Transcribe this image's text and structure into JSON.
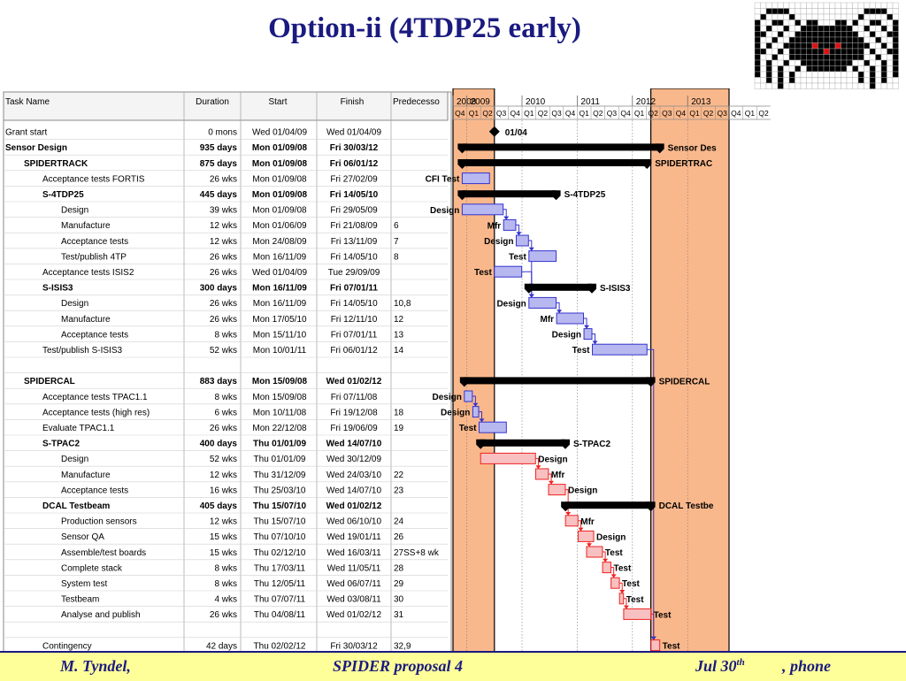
{
  "title": "Option-ii (4TDP25 early)",
  "footer": {
    "author": "M. Tyndel,",
    "proposal": "SPIDER proposal 4",
    "date": "Jul 30",
    "date_sup": "th",
    "phone": ", phone"
  },
  "table": {
    "headers": [
      "Task Name",
      "Duration",
      "Start",
      "Finish",
      "Predecesso"
    ],
    "rows": [
      {
        "name": "Grant start",
        "indent": 0,
        "bold": false,
        "duration": "0 mons",
        "start": "Wed 01/04/09",
        "finish": "Wed 01/04/09",
        "pred": ""
      },
      {
        "name": "Sensor Design",
        "indent": 0,
        "bold": true,
        "duration": "935 days",
        "start": "Mon 01/09/08",
        "finish": "Fri 30/03/12",
        "pred": ""
      },
      {
        "name": "SPIDERTRACK",
        "indent": 1,
        "bold": true,
        "duration": "875 days",
        "start": "Mon 01/09/08",
        "finish": "Fri 06/01/12",
        "pred": ""
      },
      {
        "name": "Acceptance tests FORTIS",
        "indent": 2,
        "bold": false,
        "duration": "26 wks",
        "start": "Mon 01/09/08",
        "finish": "Fri 27/02/09",
        "pred": ""
      },
      {
        "name": "S-4TDP25",
        "indent": 2,
        "bold": true,
        "duration": "445 days",
        "start": "Mon 01/09/08",
        "finish": "Fri 14/05/10",
        "pred": ""
      },
      {
        "name": "Design",
        "indent": 3,
        "bold": false,
        "duration": "39 wks",
        "start": "Mon 01/09/08",
        "finish": "Fri 29/05/09",
        "pred": ""
      },
      {
        "name": "Manufacture",
        "indent": 3,
        "bold": false,
        "duration": "12 wks",
        "start": "Mon 01/06/09",
        "finish": "Fri 21/08/09",
        "pred": "6"
      },
      {
        "name": "Acceptance tests",
        "indent": 3,
        "bold": false,
        "duration": "12 wks",
        "start": "Mon 24/08/09",
        "finish": "Fri 13/11/09",
        "pred": "7"
      },
      {
        "name": "Test/publish 4TP",
        "indent": 3,
        "bold": false,
        "duration": "26 wks",
        "start": "Mon 16/11/09",
        "finish": "Fri 14/05/10",
        "pred": "8"
      },
      {
        "name": "Acceptance tests ISIS2",
        "indent": 2,
        "bold": false,
        "duration": "26 wks",
        "start": "Wed 01/04/09",
        "finish": "Tue 29/09/09",
        "pred": ""
      },
      {
        "name": "S-ISIS3",
        "indent": 2,
        "bold": true,
        "duration": "300 days",
        "start": "Mon 16/11/09",
        "finish": "Fri 07/01/11",
        "pred": ""
      },
      {
        "name": "Design",
        "indent": 3,
        "bold": false,
        "duration": "26 wks",
        "start": "Mon 16/11/09",
        "finish": "Fri 14/05/10",
        "pred": "10,8"
      },
      {
        "name": "Manufacture",
        "indent": 3,
        "bold": false,
        "duration": "26 wks",
        "start": "Mon 17/05/10",
        "finish": "Fri 12/11/10",
        "pred": "12"
      },
      {
        "name": "Acceptance tests",
        "indent": 3,
        "bold": false,
        "duration": "8 wks",
        "start": "Mon 15/11/10",
        "finish": "Fri 07/01/11",
        "pred": "13"
      },
      {
        "name": "Test/publish S-ISIS3",
        "indent": 2,
        "bold": false,
        "duration": "52 wks",
        "start": "Mon 10/01/11",
        "finish": "Fri 06/01/12",
        "pred": "14"
      },
      {
        "name": "",
        "indent": 0,
        "bold": false,
        "duration": "",
        "start": "",
        "finish": "",
        "pred": ""
      },
      {
        "name": "SPIDERCAL",
        "indent": 1,
        "bold": true,
        "duration": "883 days",
        "start": "Mon 15/09/08",
        "finish": "Wed 01/02/12",
        "pred": ""
      },
      {
        "name": "Acceptance tests TPAC1.1",
        "indent": 2,
        "bold": false,
        "duration": "8 wks",
        "start": "Mon 15/09/08",
        "finish": "Fri 07/11/08",
        "pred": ""
      },
      {
        "name": "Acceptance tests (high res)",
        "indent": 2,
        "bold": false,
        "duration": "6 wks",
        "start": "Mon 10/11/08",
        "finish": "Fri 19/12/08",
        "pred": "18"
      },
      {
        "name": "Evaluate TPAC1.1",
        "indent": 2,
        "bold": false,
        "duration": "26 wks",
        "start": "Mon 22/12/08",
        "finish": "Fri 19/06/09",
        "pred": "19"
      },
      {
        "name": "S-TPAC2",
        "indent": 2,
        "bold": true,
        "duration": "400 days",
        "start": "Thu 01/01/09",
        "finish": "Wed 14/07/10",
        "pred": ""
      },
      {
        "name": "Design",
        "indent": 3,
        "bold": false,
        "duration": "52 wks",
        "start": "Thu 01/01/09",
        "finish": "Wed 30/12/09",
        "pred": ""
      },
      {
        "name": "Manufacture",
        "indent": 3,
        "bold": false,
        "duration": "12 wks",
        "start": "Thu 31/12/09",
        "finish": "Wed 24/03/10",
        "pred": "22"
      },
      {
        "name": "Acceptance tests",
        "indent": 3,
        "bold": false,
        "duration": "16 wks",
        "start": "Thu 25/03/10",
        "finish": "Wed 14/07/10",
        "pred": "23"
      },
      {
        "name": "DCAL Testbeam",
        "indent": 2,
        "bold": true,
        "duration": "405 days",
        "start": "Thu 15/07/10",
        "finish": "Wed 01/02/12",
        "pred": ""
      },
      {
        "name": "Production sensors",
        "indent": 3,
        "bold": false,
        "duration": "12 wks",
        "start": "Thu 15/07/10",
        "finish": "Wed 06/10/10",
        "pred": "24"
      },
      {
        "name": "Sensor QA",
        "indent": 3,
        "bold": false,
        "duration": "15 wks",
        "start": "Thu 07/10/10",
        "finish": "Wed 19/01/11",
        "pred": "26"
      },
      {
        "name": "Assemble/test  boards",
        "indent": 3,
        "bold": false,
        "duration": "15 wks",
        "start": "Thu 02/12/10",
        "finish": "Wed 16/03/11",
        "pred": "27SS+8 wk"
      },
      {
        "name": "Complete stack",
        "indent": 3,
        "bold": false,
        "duration": "8 wks",
        "start": "Thu 17/03/11",
        "finish": "Wed 11/05/11",
        "pred": "28"
      },
      {
        "name": "System test",
        "indent": 3,
        "bold": false,
        "duration": "8 wks",
        "start": "Thu 12/05/11",
        "finish": "Wed 06/07/11",
        "pred": "29"
      },
      {
        "name": "Testbeam",
        "indent": 3,
        "bold": false,
        "duration": "4 wks",
        "start": "Thu 07/07/11",
        "finish": "Wed 03/08/11",
        "pred": "30"
      },
      {
        "name": "Analyse and publish",
        "indent": 3,
        "bold": false,
        "duration": "26 wks",
        "start": "Thu 04/08/11",
        "finish": "Wed 01/02/12",
        "pred": "31"
      },
      {
        "name": "",
        "indent": 0,
        "bold": false,
        "duration": "",
        "start": "",
        "finish": "",
        "pred": ""
      },
      {
        "name": "Contingency",
        "indent": 2,
        "bold": false,
        "duration": "42 days",
        "start": "Thu 02/02/12",
        "finish": "Fri 30/03/12",
        "pred": "32,9"
      }
    ]
  },
  "chart_data": {
    "type": "gantt",
    "title": "Option-ii (4TDP25 early)",
    "timescale": {
      "years": [
        "2008",
        "2009",
        "2010",
        "2011",
        "2012",
        "2013"
      ],
      "quarters": [
        "Q4",
        "Q1",
        "Q2",
        "Q3",
        "Q4",
        "Q1",
        "Q2",
        "Q3",
        "Q4",
        "Q1",
        "Q2",
        "Q3",
        "Q4",
        "Q1",
        "Q2",
        "Q3",
        "Q4",
        "Q1",
        "Q2",
        "Q3",
        "Q4",
        "Q1",
        "Q2"
      ],
      "first_quarter_start": "2008-07-01"
    },
    "colors": {
      "blue": "#3333cc",
      "blue_fill": "#b8b8f0",
      "red": "#ee2222",
      "red_fill": "#f8c0c0",
      "summary": "#000000",
      "highlight": "#f9b88c"
    },
    "highlight_bands": [
      {
        "start": "2008-07-01",
        "end": "2009-04-01"
      },
      {
        "start": "2012-02-01",
        "end": "2013-07-01"
      }
    ],
    "tasks": [
      {
        "row": 0,
        "kind": "milestone",
        "start": "2009-04-01",
        "end": "2009-04-01",
        "label": "01/04"
      },
      {
        "row": 1,
        "kind": "summary",
        "start": "2008-09-01",
        "end": "2012-03-30",
        "label": "Sensor Des"
      },
      {
        "row": 2,
        "kind": "summary",
        "start": "2008-09-01",
        "end": "2012-01-06",
        "label": "SPIDERTRAC"
      },
      {
        "row": 3,
        "kind": "blue",
        "start": "2008-09-01",
        "end": "2009-02-27",
        "label": "CFI Test",
        "label_side": "left"
      },
      {
        "row": 4,
        "kind": "summary",
        "start": "2008-09-01",
        "end": "2010-05-14",
        "label": "S-4TDP25"
      },
      {
        "row": 5,
        "kind": "blue",
        "start": "2008-09-01",
        "end": "2009-05-29",
        "label": "Design",
        "label_side": "left"
      },
      {
        "row": 6,
        "kind": "blue",
        "start": "2009-06-01",
        "end": "2009-08-21",
        "label": "Mfr",
        "label_side": "left"
      },
      {
        "row": 7,
        "kind": "blue",
        "start": "2009-08-24",
        "end": "2009-11-13",
        "label": "Design",
        "label_side": "left"
      },
      {
        "row": 8,
        "kind": "blue",
        "start": "2009-11-16",
        "end": "2010-05-14",
        "label": "Test",
        "label_side": "left"
      },
      {
        "row": 9,
        "kind": "blue",
        "start": "2009-04-01",
        "end": "2009-09-29",
        "label": "Test",
        "label_side": "left"
      },
      {
        "row": 10,
        "kind": "summary",
        "start": "2009-11-16",
        "end": "2011-01-07",
        "label": "S-ISIS3"
      },
      {
        "row": 11,
        "kind": "blue",
        "start": "2009-11-16",
        "end": "2010-05-14",
        "label": "Design",
        "label_side": "left"
      },
      {
        "row": 12,
        "kind": "blue",
        "start": "2010-05-17",
        "end": "2010-11-12",
        "label": "Mfr",
        "label_side": "left"
      },
      {
        "row": 13,
        "kind": "blue",
        "start": "2010-11-15",
        "end": "2011-01-07",
        "label": "Design",
        "label_side": "left"
      },
      {
        "row": 14,
        "kind": "blue",
        "start": "2011-01-10",
        "end": "2012-01-06",
        "label": "Test",
        "label_side": "left"
      },
      {
        "row": 16,
        "kind": "summary",
        "start": "2008-09-15",
        "end": "2012-02-01",
        "label": "SPIDERCAL"
      },
      {
        "row": 17,
        "kind": "blue",
        "start": "2008-09-15",
        "end": "2008-11-07",
        "label": "Design",
        "label_side": "left"
      },
      {
        "row": 18,
        "kind": "blue",
        "start": "2008-11-10",
        "end": "2008-12-19",
        "label": "Design",
        "label_side": "left"
      },
      {
        "row": 19,
        "kind": "blue",
        "start": "2008-12-22",
        "end": "2009-06-19",
        "label": "Test",
        "label_side": "left"
      },
      {
        "row": 20,
        "kind": "summary",
        "start": "2009-01-01",
        "end": "2010-07-14",
        "label": "S-TPAC2"
      },
      {
        "row": 21,
        "kind": "red",
        "start": "2009-01-01",
        "end": "2009-12-30",
        "label": "Design"
      },
      {
        "row": 22,
        "kind": "red",
        "start": "2009-12-31",
        "end": "2010-03-24",
        "label": "Mfr"
      },
      {
        "row": 23,
        "kind": "red",
        "start": "2010-03-25",
        "end": "2010-07-14",
        "label": "Design"
      },
      {
        "row": 24,
        "kind": "summary",
        "start": "2010-07-15",
        "end": "2012-02-01",
        "label": "DCAL Testbe"
      },
      {
        "row": 25,
        "kind": "red",
        "start": "2010-07-15",
        "end": "2010-10-06",
        "label": "Mfr"
      },
      {
        "row": 26,
        "kind": "red",
        "start": "2010-10-07",
        "end": "2011-01-19",
        "label": "Design"
      },
      {
        "row": 27,
        "kind": "red",
        "start": "2010-12-02",
        "end": "2011-03-16",
        "label": "Test"
      },
      {
        "row": 28,
        "kind": "red",
        "start": "2011-03-17",
        "end": "2011-05-11",
        "label": "Test"
      },
      {
        "row": 29,
        "kind": "red",
        "start": "2011-05-12",
        "end": "2011-07-06",
        "label": "Test"
      },
      {
        "row": 30,
        "kind": "red",
        "start": "2011-07-07",
        "end": "2011-08-03",
        "label": "Test"
      },
      {
        "row": 31,
        "kind": "red",
        "start": "2011-08-04",
        "end": "2012-02-01",
        "label": "Test"
      },
      {
        "row": 33,
        "kind": "red",
        "start": "2012-02-02",
        "end": "2012-03-30",
        "label": "Test"
      }
    ],
    "links": [
      {
        "from": 5,
        "to": 6,
        "color": "blue"
      },
      {
        "from": 6,
        "to": 7,
        "color": "blue"
      },
      {
        "from": 7,
        "to": 8,
        "color": "blue"
      },
      {
        "from": 8,
        "to": 11,
        "color": "blue"
      },
      {
        "from": 9,
        "to": 11,
        "color": "blue"
      },
      {
        "from": 11,
        "to": 12,
        "color": "blue"
      },
      {
        "from": 12,
        "to": 13,
        "color": "blue"
      },
      {
        "from": 13,
        "to": 14,
        "color": "blue"
      },
      {
        "from": 17,
        "to": 18,
        "color": "blue"
      },
      {
        "from": 18,
        "to": 19,
        "color": "blue"
      },
      {
        "from": 21,
        "to": 22,
        "color": "red"
      },
      {
        "from": 22,
        "to": 23,
        "color": "red"
      },
      {
        "from": 23,
        "to": 25,
        "color": "red"
      },
      {
        "from": 25,
        "to": 26,
        "color": "red"
      },
      {
        "from": 26,
        "to": 27,
        "color": "red"
      },
      {
        "from": 27,
        "to": 28,
        "color": "red"
      },
      {
        "from": 28,
        "to": 29,
        "color": "red"
      },
      {
        "from": 29,
        "to": 30,
        "color": "red"
      },
      {
        "from": 30,
        "to": 31,
        "color": "red"
      },
      {
        "from": 31,
        "to": 33,
        "color": "red"
      },
      {
        "from": 14,
        "to": 33,
        "color": "blue"
      }
    ]
  }
}
